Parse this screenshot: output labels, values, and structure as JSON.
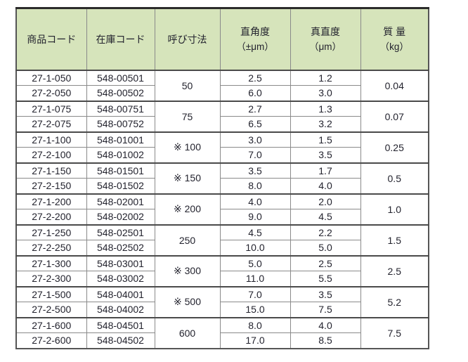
{
  "table": {
    "headers": [
      {
        "label": "商品コード",
        "sub": ""
      },
      {
        "label": "在庫コード",
        "sub": ""
      },
      {
        "label": "呼び寸法",
        "sub": ""
      },
      {
        "label": "直角度",
        "sub": "（±μm）"
      },
      {
        "label": "真直度",
        "sub": "（μm）"
      },
      {
        "label": "質 量",
        "sub": "（kg）"
      }
    ],
    "groups": [
      {
        "size": "50",
        "mass": "0.04",
        "rows": [
          {
            "product_code": "27-1-050",
            "stock_code": "548-00501",
            "squareness": "2.5",
            "straightness": "1.2"
          },
          {
            "product_code": "27-2-050",
            "stock_code": "548-00502",
            "squareness": "6.0",
            "straightness": "3.0"
          }
        ]
      },
      {
        "size": "75",
        "mass": "0.07",
        "rows": [
          {
            "product_code": "27-1-075",
            "stock_code": "548-00751",
            "squareness": "2.7",
            "straightness": "1.3"
          },
          {
            "product_code": "27-2-075",
            "stock_code": "548-00752",
            "squareness": "6.5",
            "straightness": "3.2"
          }
        ]
      },
      {
        "size": "※ 100",
        "mass": "0.25",
        "rows": [
          {
            "product_code": "27-1-100",
            "stock_code": "548-01001",
            "squareness": "3.0",
            "straightness": "1.5"
          },
          {
            "product_code": "27-2-100",
            "stock_code": "548-01002",
            "squareness": "7.0",
            "straightness": "3.5"
          }
        ]
      },
      {
        "size": "※ 150",
        "mass": "0.5",
        "rows": [
          {
            "product_code": "27-1-150",
            "stock_code": "548-01501",
            "squareness": "3.5",
            "straightness": "1.7"
          },
          {
            "product_code": "27-2-150",
            "stock_code": "548-01502",
            "squareness": "8.0",
            "straightness": "4.0"
          }
        ]
      },
      {
        "size": "※ 200",
        "mass": "1.0",
        "rows": [
          {
            "product_code": "27-1-200",
            "stock_code": "548-02001",
            "squareness": "4.0",
            "straightness": "2.0"
          },
          {
            "product_code": "27-2-200",
            "stock_code": "548-02002",
            "squareness": "9.0",
            "straightness": "4.5"
          }
        ]
      },
      {
        "size": "250",
        "mass": "1.5",
        "rows": [
          {
            "product_code": "27-1-250",
            "stock_code": "548-02501",
            "squareness": "4.5",
            "straightness": "2.2"
          },
          {
            "product_code": "27-2-250",
            "stock_code": "548-02502",
            "squareness": "10.0",
            "straightness": "5.0"
          }
        ]
      },
      {
        "size": "※ 300",
        "mass": "2.5",
        "rows": [
          {
            "product_code": "27-1-300",
            "stock_code": "548-03001",
            "squareness": "5.0",
            "straightness": "2.5"
          },
          {
            "product_code": "27-2-300",
            "stock_code": "548-03002",
            "squareness": "11.0",
            "straightness": "5.5"
          }
        ]
      },
      {
        "size": "※ 500",
        "mass": "5.2",
        "rows": [
          {
            "product_code": "27-1-500",
            "stock_code": "548-04001",
            "squareness": "7.0",
            "straightness": "3.5"
          },
          {
            "product_code": "27-2-500",
            "stock_code": "548-04002",
            "squareness": "15.0",
            "straightness": "7.5"
          }
        ]
      },
      {
        "size": "600",
        "mass": "7.5",
        "rows": [
          {
            "product_code": "27-1-600",
            "stock_code": "548-04501",
            "squareness": "8.0",
            "straightness": "4.0"
          },
          {
            "product_code": "27-2-600",
            "stock_code": "548-04502",
            "squareness": "17.0",
            "straightness": "8.5"
          }
        ]
      }
    ]
  }
}
